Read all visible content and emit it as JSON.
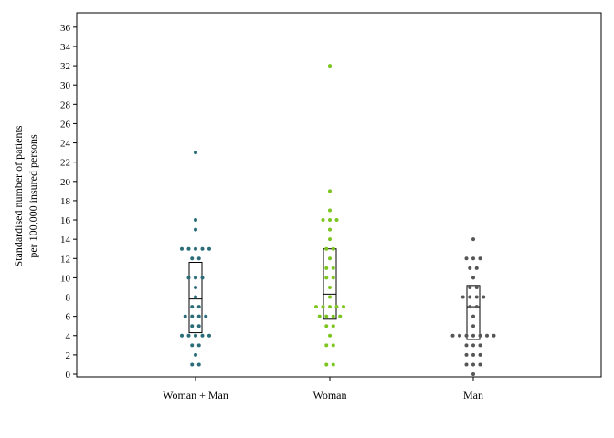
{
  "chart_data": {
    "type": "scatter",
    "subtype": "dot strip plot with box plots",
    "title": "",
    "xlabel": "",
    "ylabel": [
      "Standardised number of patients",
      "per 100,000 insured persons"
    ],
    "ylim": [
      0,
      37
    ],
    "yticks": [
      0,
      2,
      4,
      6,
      8,
      10,
      12,
      14,
      16,
      18,
      20,
      22,
      24,
      26,
      28,
      30,
      32,
      34,
      36
    ],
    "grid": false,
    "legend": "none",
    "categories": [
      "Woman + Man",
      "Woman",
      "Man"
    ],
    "series": [
      {
        "category": "Woman + Man",
        "color": "#2a6c78",
        "box": {
          "q1": 4.3,
          "median": 7.8,
          "q3": 11.6
        },
        "values": [
          1,
          1,
          2,
          3,
          3,
          4,
          4,
          4,
          4,
          4,
          5,
          5,
          6,
          6,
          6,
          6,
          7,
          7,
          8,
          9,
          10,
          10,
          10,
          12,
          12,
          13,
          13,
          13,
          13,
          13,
          15,
          16,
          23
        ]
      },
      {
        "category": "Woman",
        "color": "#7cc41e",
        "box": {
          "q1": 5.7,
          "median": 8.3,
          "q3": 13.0
        },
        "values": [
          1,
          1,
          3,
          3,
          4,
          5,
          5,
          6,
          6,
          6,
          6,
          7,
          7,
          7,
          7,
          7,
          8,
          9,
          10,
          10,
          11,
          11,
          12,
          13,
          13,
          14,
          15,
          16,
          16,
          16,
          17,
          19,
          32
        ]
      },
      {
        "category": "Man",
        "color": "#555555",
        "box": {
          "q1": 3.6,
          "median": 7.0,
          "q3": 9.2
        },
        "values": [
          0,
          1,
          1,
          1,
          2,
          2,
          2,
          3,
          3,
          3,
          4,
          4,
          4,
          4,
          4,
          4,
          4,
          5,
          6,
          7,
          7,
          8,
          8,
          8,
          8,
          9,
          9,
          10,
          11,
          11,
          12,
          12,
          12,
          14
        ]
      }
    ]
  }
}
